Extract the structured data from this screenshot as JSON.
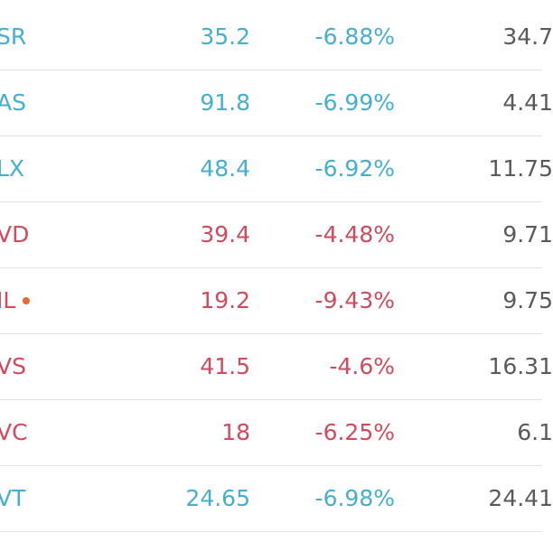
{
  "table": {
    "rows": [
      {
        "name": "SR",
        "price": "35.2",
        "change": "-6.88%",
        "last": "34.7",
        "color": "#45afd3"
      },
      {
        "name": "AS",
        "price": "91.8",
        "change": "-6.99%",
        "last": "4.41",
        "color": "#45afd3"
      },
      {
        "name": "LX",
        "price": "48.4",
        "change": "-6.92%",
        "last": "11.75",
        "color": "#45afd3"
      },
      {
        "name": "VD",
        "price": "39.4",
        "change": "-4.48%",
        "last": "9.71",
        "color": "#d24a5c"
      },
      {
        "name": "IL",
        "price": "19.2",
        "change": "-9.43%",
        "last": "9.75",
        "color": "#d24a5c",
        "dot_color": "#e8692f"
      },
      {
        "name": "VS",
        "price": "41.5",
        "change": "-4.6%",
        "last": "16.31",
        "color": "#d24a5c"
      },
      {
        "name": "VC",
        "price": "18",
        "change": "-6.25%",
        "last": "6.1",
        "color": "#d24a5c"
      },
      {
        "name": "VT",
        "price": "24.65",
        "change": "-6.98%",
        "last": "24.41",
        "color": "#45afd3"
      }
    ]
  }
}
